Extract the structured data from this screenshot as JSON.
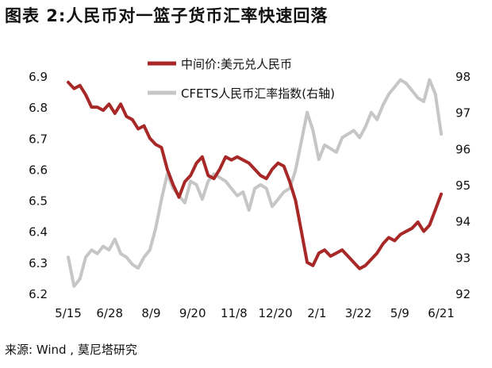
{
  "title": "图表 2:人民币对一篮子货币汇率快速回落",
  "source": "来源: Wind , 莫尼塔研究",
  "chart_data": {
    "type": "line",
    "x_labels": [
      "5/15",
      "6/28",
      "8/9",
      "9/20",
      "11/8",
      "12/20",
      "2/1",
      "3/22",
      "5/9",
      "6/21"
    ],
    "y_left": {
      "ticks": [
        "6.2",
        "6.3",
        "6.4",
        "6.5",
        "6.6",
        "6.7",
        "6.8",
        "6.9"
      ],
      "range": [
        6.2,
        6.9
      ]
    },
    "y_right": {
      "ticks": [
        "92",
        "93",
        "94",
        "95",
        "96",
        "97",
        "98"
      ],
      "range": [
        92,
        98
      ],
      "label": "右轴"
    },
    "legend_position": "top-center",
    "series": [
      {
        "name": "中间价:美元兑人民币",
        "axis": "left",
        "color": "#A82828",
        "values": [
          6.88,
          6.86,
          6.87,
          6.84,
          6.8,
          6.8,
          6.79,
          6.81,
          6.78,
          6.81,
          6.77,
          6.76,
          6.73,
          6.74,
          6.7,
          6.68,
          6.67,
          6.6,
          6.55,
          6.51,
          6.56,
          6.58,
          6.62,
          6.64,
          6.58,
          6.57,
          6.6,
          6.64,
          6.63,
          6.64,
          6.63,
          6.62,
          6.6,
          6.58,
          6.57,
          6.6,
          6.62,
          6.61,
          6.56,
          6.5,
          6.4,
          6.3,
          6.29,
          6.33,
          6.34,
          6.32,
          6.33,
          6.34,
          6.32,
          6.3,
          6.28,
          6.29,
          6.31,
          6.33,
          6.36,
          6.38,
          6.37,
          6.39,
          6.4,
          6.41,
          6.43,
          6.4,
          6.42,
          6.47,
          6.52
        ]
      },
      {
        "name": "CFETS人民币汇率指数(右轴)",
        "axis": "right",
        "color": "#C6C6C6",
        "values": [
          93.0,
          92.2,
          92.4,
          93.0,
          93.2,
          93.1,
          93.3,
          93.2,
          93.5,
          93.1,
          93.0,
          92.8,
          92.7,
          93.0,
          93.2,
          93.8,
          94.6,
          95.3,
          94.9,
          94.7,
          94.5,
          95.1,
          95.0,
          94.6,
          95.1,
          95.3,
          95.2,
          95.1,
          94.9,
          94.7,
          94.8,
          94.3,
          94.9,
          95.0,
          94.9,
          94.4,
          94.6,
          94.8,
          94.9,
          95.4,
          96.2,
          97.0,
          96.5,
          95.7,
          96.1,
          96.0,
          95.9,
          96.3,
          96.4,
          96.5,
          96.3,
          96.6,
          97.0,
          96.8,
          97.2,
          97.5,
          97.7,
          97.9,
          97.8,
          97.6,
          97.4,
          97.3,
          97.9,
          97.5,
          96.4
        ]
      }
    ]
  }
}
